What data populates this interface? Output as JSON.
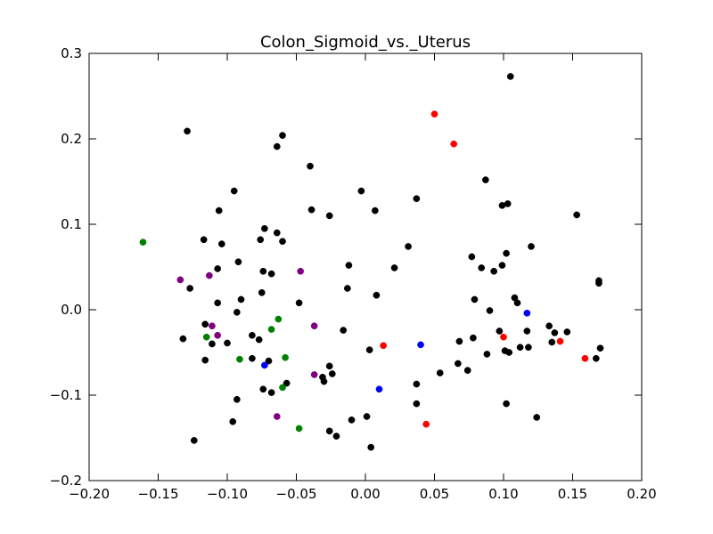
{
  "chart_data": {
    "type": "scatter",
    "title": "Colon_Sigmoid_vs._Uterus",
    "xlabel": "",
    "ylabel": "",
    "xlim": [
      -0.2,
      0.2
    ],
    "ylim": [
      -0.2,
      0.3
    ],
    "x_ticks": [
      "−0.20",
      "−0.15",
      "−0.10",
      "−0.05",
      "0.00",
      "0.05",
      "0.10",
      "0.15",
      "0.20"
    ],
    "y_ticks": [
      "−0.2",
      "−0.1",
      "0.0",
      "0.1",
      "0.2",
      "0.3"
    ],
    "grid": false,
    "series": [
      {
        "color": "#000000",
        "points": [
          [
            0.105,
            0.273
          ],
          [
            -0.129,
            0.209
          ],
          [
            -0.06,
            0.204
          ],
          [
            -0.064,
            0.191
          ],
          [
            -0.04,
            0.168
          ],
          [
            0.087,
            0.152
          ],
          [
            -0.095,
            0.139
          ],
          [
            -0.003,
            0.139
          ],
          [
            0.037,
            0.13
          ],
          [
            0.103,
            0.124
          ],
          [
            0.099,
            0.122
          ],
          [
            -0.106,
            0.116
          ],
          [
            -0.039,
            0.117
          ],
          [
            0.007,
            0.116
          ],
          [
            -0.026,
            0.11
          ],
          [
            0.153,
            0.111
          ],
          [
            -0.073,
            0.095
          ],
          [
            -0.064,
            0.09
          ],
          [
            -0.076,
            0.082
          ],
          [
            -0.06,
            0.08
          ],
          [
            -0.117,
            0.082
          ],
          [
            -0.104,
            0.077
          ],
          [
            0.031,
            0.074
          ],
          [
            0.12,
            0.074
          ],
          [
            0.102,
            0.066
          ],
          [
            0.077,
            0.062
          ],
          [
            -0.092,
            0.056
          ],
          [
            0.099,
            0.052
          ],
          [
            -0.012,
            0.052
          ],
          [
            0.021,
            0.049
          ],
          [
            0.084,
            0.049
          ],
          [
            -0.107,
            0.048
          ],
          [
            0.093,
            0.045
          ],
          [
            -0.074,
            0.045
          ],
          [
            -0.068,
            0.042
          ],
          [
            -0.127,
            0.025
          ],
          [
            -0.013,
            0.025
          ],
          [
            -0.075,
            0.02
          ],
          [
            0.008,
            0.017
          ],
          [
            0.108,
            0.014
          ],
          [
            -0.09,
            0.012
          ],
          [
            0.079,
            0.012
          ],
          [
            -0.048,
            0.008
          ],
          [
            0.11,
            0.008
          ],
          [
            -0.107,
            0.008
          ],
          [
            -0.093,
            -0.003
          ],
          [
            0.09,
            -0.001
          ],
          [
            -0.116,
            -0.017
          ],
          [
            0.133,
            -0.019
          ],
          [
            -0.016,
            -0.024
          ],
          [
            0.097,
            -0.025
          ],
          [
            0.117,
            -0.025
          ],
          [
            0.137,
            -0.027
          ],
          [
            0.146,
            -0.026
          ],
          [
            -0.082,
            -0.03
          ],
          [
            -0.077,
            -0.035
          ],
          [
            0.078,
            -0.033
          ],
          [
            -0.132,
            -0.034
          ],
          [
            0.068,
            -0.037
          ],
          [
            -0.111,
            -0.04
          ],
          [
            -0.1,
            -0.039
          ],
          [
            0.135,
            -0.038
          ],
          [
            0.112,
            -0.044
          ],
          [
            0.118,
            -0.044
          ],
          [
            0.17,
            -0.045
          ],
          [
            0.003,
            -0.047
          ],
          [
            0.101,
            -0.048
          ],
          [
            0.104,
            -0.05
          ],
          [
            0.088,
            -0.052
          ],
          [
            -0.082,
            -0.057
          ],
          [
            0.167,
            -0.057
          ],
          [
            -0.116,
            -0.059
          ],
          [
            -0.07,
            -0.06
          ],
          [
            0.067,
            -0.063
          ],
          [
            -0.026,
            -0.066
          ],
          [
            0.074,
            -0.071
          ],
          [
            0.054,
            -0.074
          ],
          [
            -0.024,
            -0.075
          ],
          [
            -0.031,
            -0.079
          ],
          [
            -0.057,
            -0.086
          ],
          [
            -0.03,
            -0.084
          ],
          [
            0.037,
            -0.087
          ],
          [
            -0.074,
            -0.093
          ],
          [
            -0.068,
            -0.097
          ],
          [
            -0.093,
            -0.105
          ],
          [
            0.037,
            -0.11
          ],
          [
            0.102,
            -0.11
          ],
          [
            0.001,
            -0.125
          ],
          [
            0.124,
            -0.126
          ],
          [
            -0.01,
            -0.129
          ],
          [
            -0.096,
            -0.131
          ],
          [
            -0.026,
            -0.142
          ],
          [
            -0.021,
            -0.148
          ],
          [
            -0.124,
            -0.153
          ],
          [
            0.004,
            -0.161
          ],
          [
            0.169,
            0.034
          ],
          [
            0.169,
            0.031
          ]
        ]
      },
      {
        "color": "#ff0000",
        "points": [
          [
            0.05,
            0.229
          ],
          [
            0.064,
            0.194
          ],
          [
            0.013,
            -0.042
          ],
          [
            0.1,
            -0.032
          ],
          [
            0.141,
            -0.037
          ],
          [
            0.159,
            -0.057
          ],
          [
            0.044,
            -0.134
          ]
        ]
      },
      {
        "color": "#008000",
        "points": [
          [
            -0.161,
            0.079
          ],
          [
            -0.063,
            -0.011
          ],
          [
            -0.068,
            -0.023
          ],
          [
            -0.115,
            -0.032
          ],
          [
            -0.091,
            -0.058
          ],
          [
            -0.058,
            -0.056
          ],
          [
            -0.06,
            -0.091
          ],
          [
            -0.048,
            -0.139
          ]
        ]
      },
      {
        "color": "#800080",
        "points": [
          [
            -0.134,
            0.035
          ],
          [
            -0.113,
            0.04
          ],
          [
            -0.047,
            0.045
          ],
          [
            -0.111,
            -0.019
          ],
          [
            -0.037,
            -0.019
          ],
          [
            -0.107,
            -0.03
          ],
          [
            -0.037,
            -0.076
          ],
          [
            -0.064,
            -0.125
          ]
        ]
      },
      {
        "color": "#0000ff",
        "points": [
          [
            0.117,
            -0.004
          ],
          [
            0.04,
            -0.041
          ],
          [
            -0.073,
            -0.065
          ],
          [
            0.01,
            -0.093
          ]
        ]
      }
    ]
  }
}
